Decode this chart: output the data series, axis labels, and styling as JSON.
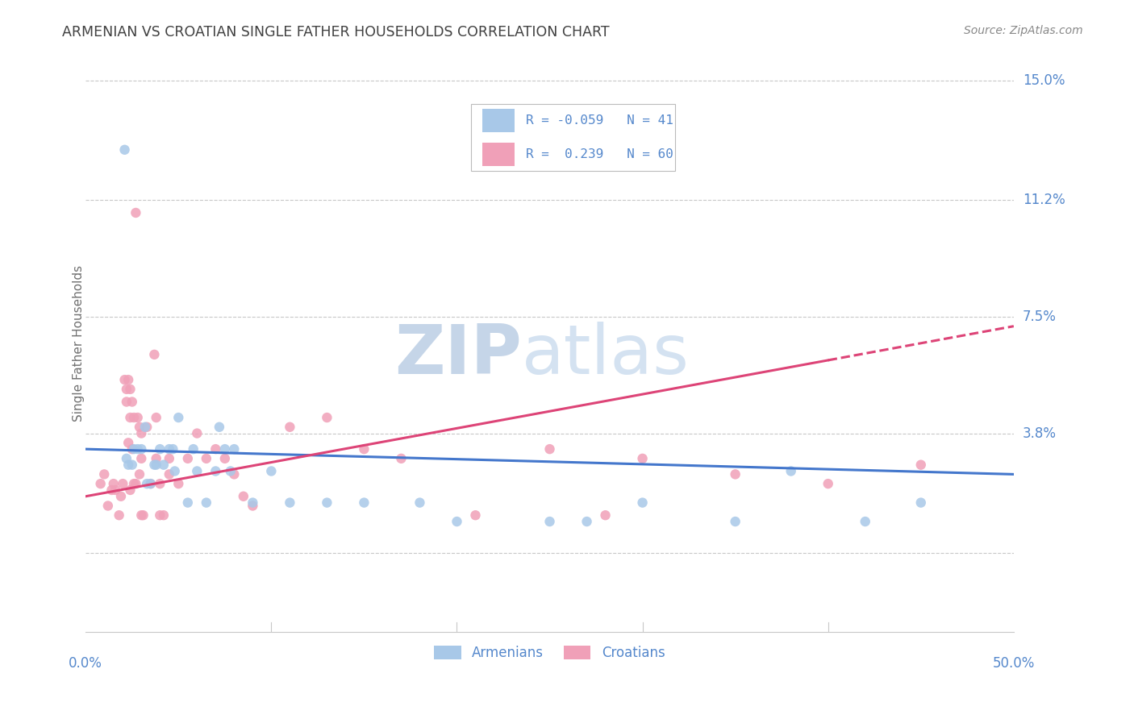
{
  "title": "ARMENIAN VS CROATIAN SINGLE FATHER HOUSEHOLDS CORRELATION CHART",
  "source": "Source: ZipAtlas.com",
  "ylabel": "Single Father Households",
  "yticks": [
    0.0,
    0.038,
    0.075,
    0.112,
    0.15
  ],
  "ytick_labels": [
    "",
    "3.8%",
    "7.5%",
    "11.2%",
    "15.0%"
  ],
  "xlim": [
    0.0,
    0.5
  ],
  "ylim": [
    -0.025,
    0.158
  ],
  "watermark_zip": "ZIP",
  "watermark_atlas": "atlas",
  "legend_r_armenian": "-0.059",
  "legend_n_armenian": "41",
  "legend_r_croatian": "0.239",
  "legend_n_croatian": "60",
  "armenian_color": "#a8c8e8",
  "croatian_color": "#f0a0b8",
  "armenian_line_color": "#4477cc",
  "croatian_line_color": "#dd4477",
  "armenian_scatter": [
    [
      0.021,
      0.128
    ],
    [
      0.022,
      0.03
    ],
    [
      0.023,
      0.028
    ],
    [
      0.025,
      0.028
    ],
    [
      0.026,
      0.033
    ],
    [
      0.028,
      0.033
    ],
    [
      0.03,
      0.033
    ],
    [
      0.032,
      0.04
    ],
    [
      0.033,
      0.022
    ],
    [
      0.035,
      0.022
    ],
    [
      0.037,
      0.028
    ],
    [
      0.038,
      0.028
    ],
    [
      0.04,
      0.033
    ],
    [
      0.042,
      0.028
    ],
    [
      0.045,
      0.033
    ],
    [
      0.047,
      0.033
    ],
    [
      0.048,
      0.026
    ],
    [
      0.05,
      0.043
    ],
    [
      0.055,
      0.016
    ],
    [
      0.058,
      0.033
    ],
    [
      0.06,
      0.026
    ],
    [
      0.065,
      0.016
    ],
    [
      0.07,
      0.026
    ],
    [
      0.072,
      0.04
    ],
    [
      0.075,
      0.033
    ],
    [
      0.078,
      0.026
    ],
    [
      0.08,
      0.033
    ],
    [
      0.09,
      0.016
    ],
    [
      0.1,
      0.026
    ],
    [
      0.11,
      0.016
    ],
    [
      0.13,
      0.016
    ],
    [
      0.15,
      0.016
    ],
    [
      0.18,
      0.016
    ],
    [
      0.2,
      0.01
    ],
    [
      0.25,
      0.01
    ],
    [
      0.27,
      0.01
    ],
    [
      0.3,
      0.016
    ],
    [
      0.35,
      0.01
    ],
    [
      0.38,
      0.026
    ],
    [
      0.42,
      0.01
    ],
    [
      0.45,
      0.016
    ]
  ],
  "croatian_scatter": [
    [
      0.008,
      0.022
    ],
    [
      0.01,
      0.025
    ],
    [
      0.012,
      0.015
    ],
    [
      0.014,
      0.02
    ],
    [
      0.015,
      0.022
    ],
    [
      0.016,
      0.02
    ],
    [
      0.018,
      0.012
    ],
    [
      0.019,
      0.018
    ],
    [
      0.02,
      0.022
    ],
    [
      0.021,
      0.055
    ],
    [
      0.022,
      0.048
    ],
    [
      0.022,
      0.052
    ],
    [
      0.023,
      0.055
    ],
    [
      0.023,
      0.035
    ],
    [
      0.024,
      0.052
    ],
    [
      0.024,
      0.043
    ],
    [
      0.024,
      0.02
    ],
    [
      0.025,
      0.048
    ],
    [
      0.025,
      0.033
    ],
    [
      0.026,
      0.022
    ],
    [
      0.026,
      0.043
    ],
    [
      0.027,
      0.022
    ],
    [
      0.027,
      0.108
    ],
    [
      0.028,
      0.043
    ],
    [
      0.029,
      0.04
    ],
    [
      0.029,
      0.025
    ],
    [
      0.03,
      0.03
    ],
    [
      0.03,
      0.012
    ],
    [
      0.03,
      0.038
    ],
    [
      0.031,
      0.012
    ],
    [
      0.033,
      0.04
    ],
    [
      0.035,
      0.022
    ],
    [
      0.037,
      0.063
    ],
    [
      0.038,
      0.03
    ],
    [
      0.038,
      0.043
    ],
    [
      0.04,
      0.022
    ],
    [
      0.04,
      0.012
    ],
    [
      0.042,
      0.012
    ],
    [
      0.045,
      0.025
    ],
    [
      0.045,
      0.03
    ],
    [
      0.05,
      0.022
    ],
    [
      0.055,
      0.03
    ],
    [
      0.06,
      0.038
    ],
    [
      0.065,
      0.03
    ],
    [
      0.07,
      0.033
    ],
    [
      0.075,
      0.03
    ],
    [
      0.08,
      0.025
    ],
    [
      0.085,
      0.018
    ],
    [
      0.09,
      0.015
    ],
    [
      0.11,
      0.04
    ],
    [
      0.13,
      0.043
    ],
    [
      0.15,
      0.033
    ],
    [
      0.17,
      0.03
    ],
    [
      0.21,
      0.012
    ],
    [
      0.25,
      0.033
    ],
    [
      0.28,
      0.012
    ],
    [
      0.3,
      0.03
    ],
    [
      0.35,
      0.025
    ],
    [
      0.4,
      0.022
    ],
    [
      0.45,
      0.028
    ]
  ],
  "armenian_trend": {
    "x_start": 0.0,
    "y_start": 0.033,
    "x_end": 0.5,
    "y_end": 0.025
  },
  "croatian_trend": {
    "x_start": 0.0,
    "y_start": 0.018,
    "x_end": 0.5,
    "y_end": 0.072
  },
  "croatian_trend_solid_end": 0.4,
  "background_color": "#ffffff",
  "grid_color": "#c8c8c8",
  "title_color": "#404040",
  "source_color": "#888888",
  "label_color": "#5588cc",
  "legend_text_color": "#5588cc"
}
